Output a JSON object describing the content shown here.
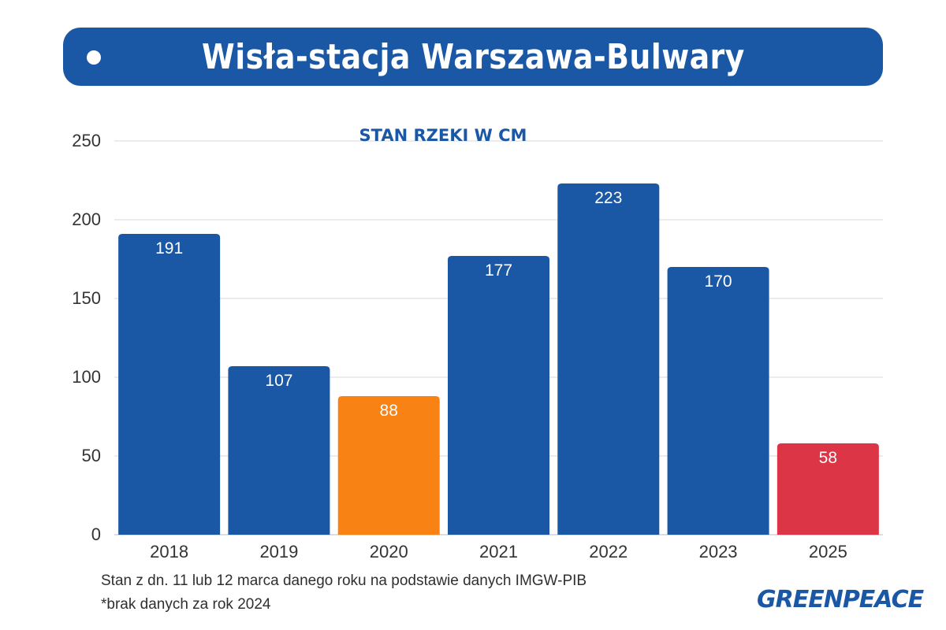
{
  "header": {
    "title": "Wisła-stacja Warszawa-Bulwary"
  },
  "chart_data": {
    "type": "bar",
    "title": "STAN RZEKI W CM",
    "categories": [
      "2018",
      "2019",
      "2020",
      "2021",
      "2022",
      "2023",
      "2025"
    ],
    "values": [
      191,
      107,
      88,
      177,
      223,
      170,
      58
    ],
    "bar_colors": [
      "#1a57a5",
      "#1a57a5",
      "#f98214",
      "#1a57a5",
      "#1a57a5",
      "#1a57a5",
      "#dc3545"
    ],
    "ylim": [
      0,
      250
    ],
    "yticks": [
      0,
      50,
      100,
      150,
      200,
      250
    ],
    "grid": true,
    "xlabel": "",
    "ylabel": ""
  },
  "footnotes": {
    "line1": "Stan z dn. 11 lub 12 marca danego roku na podstawie danych IMGW-PIB",
    "line2": "*brak danych za rok 2024"
  },
  "logo": {
    "text": "GREENPEACE"
  },
  "colors": {
    "primary": "#1a57a5",
    "accent_orange": "#f98214",
    "accent_red": "#dc3545"
  }
}
